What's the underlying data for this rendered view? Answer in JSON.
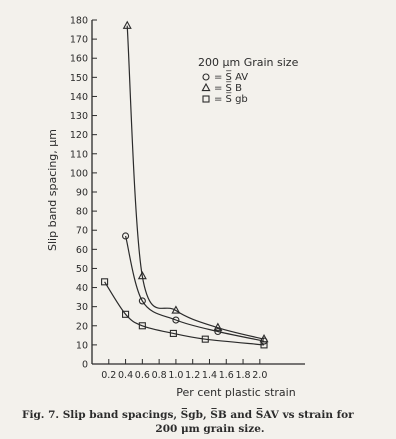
{
  "chart_data": {
    "type": "line",
    "title": "",
    "xlabel": "Per cent plastic strain",
    "ylabel": "Slip band spacing,  μm",
    "xlim": [
      0.0,
      2.3
    ],
    "ylim": [
      0,
      180
    ],
    "x_ticks": [
      "0.2",
      "0.4",
      "0.6",
      "0.8",
      "1.0",
      "1.2",
      "1.4",
      "1.6",
      "1.8",
      "2.0"
    ],
    "y_ticks": [
      "0",
      "10",
      "20",
      "30",
      "40",
      "50",
      "60",
      "70",
      "80",
      "90",
      "100",
      "110",
      "120",
      "130",
      "140",
      "150",
      "160",
      "170",
      "180"
    ],
    "grid": false,
    "legend_title": "200 μm  Grain size",
    "series": [
      {
        "name": "= S̅ AV",
        "marker": "circle",
        "x": [
          0.4,
          0.6,
          1.0,
          1.5,
          2.05
        ],
        "y": [
          67,
          33,
          23,
          17,
          12
        ]
      },
      {
        "name": "= S̅ B",
        "marker": "triangle",
        "x": [
          0.42,
          0.6,
          1.0,
          1.5,
          2.05
        ],
        "y": [
          177,
          46,
          28,
          19,
          13
        ]
      },
      {
        "name": "= S̅ gb",
        "marker": "square",
        "x": [
          0.15,
          0.4,
          0.6,
          0.97,
          1.35,
          2.05
        ],
        "y": [
          43,
          26,
          20,
          16,
          13,
          10
        ]
      }
    ]
  },
  "caption": {
    "line1": "Fig. 7. Slip band spacings, S̅gb, S̅B and S̅AV vs strain for",
    "line2": "200 μm grain size."
  },
  "colors": {
    "background": "#f3f1ec",
    "ink": "#2b2b2b"
  }
}
